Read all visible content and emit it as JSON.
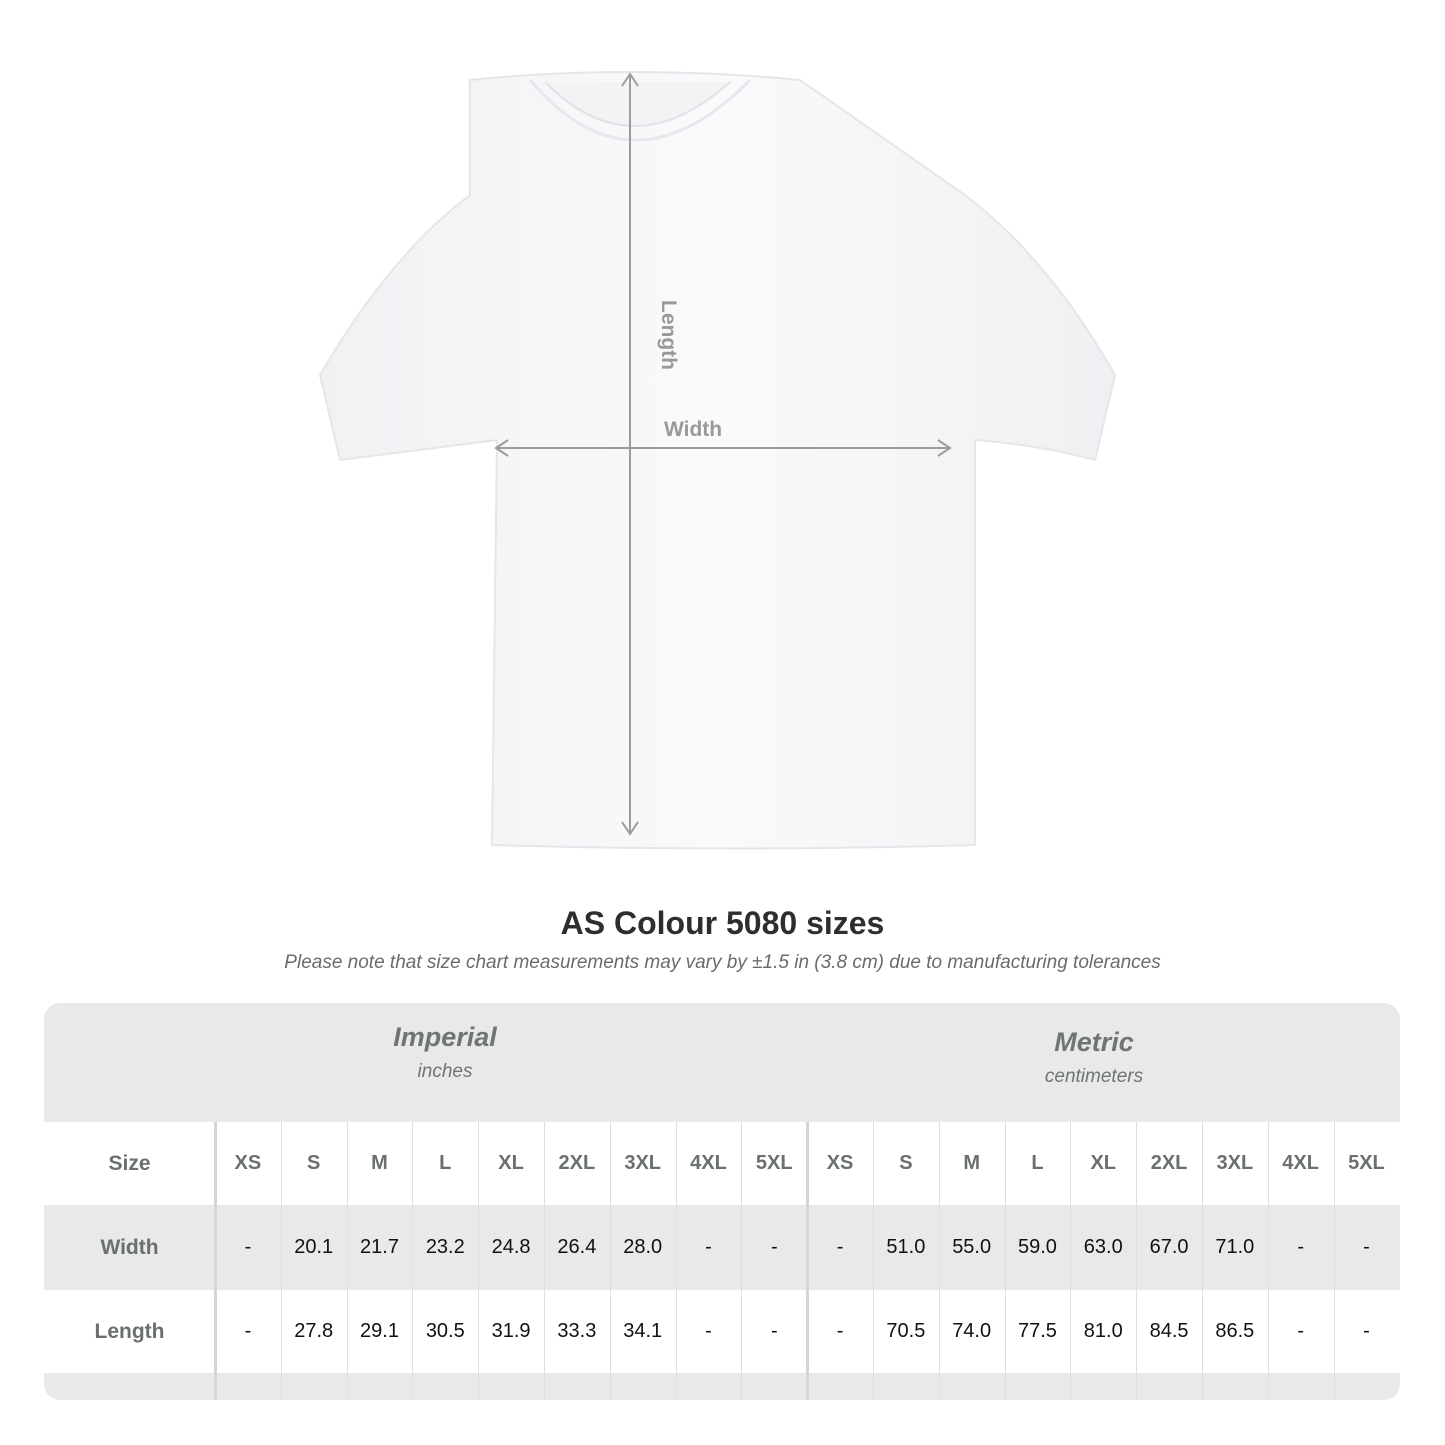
{
  "diagram": {
    "length_label": "Length",
    "width_label": "Width"
  },
  "title": "AS Colour 5080 sizes",
  "note": "Please note that size chart measurements may vary by ±1.5 in (3.8 cm) due to manufacturing tolerances",
  "imperial": {
    "name": "Imperial",
    "unit": "inches"
  },
  "metric": {
    "name": "Metric",
    "unit": "centimeters"
  },
  "rows": [
    {
      "label": "Size",
      "imperial": [
        "XS",
        "S",
        "M",
        "L",
        "XL",
        "2XL",
        "3XL",
        "4XL",
        "5XL"
      ],
      "metric": [
        "XS",
        "S",
        "M",
        "L",
        "XL",
        "2XL",
        "3XL",
        "4XL",
        "5XL"
      ]
    },
    {
      "label": "Width",
      "imperial": [
        "-",
        "20.1",
        "21.7",
        "23.2",
        "24.8",
        "26.4",
        "28.0",
        "-",
        "-"
      ],
      "metric": [
        "-",
        "51.0",
        "55.0",
        "59.0",
        "63.0",
        "67.0",
        "71.0",
        "-",
        "-"
      ]
    },
    {
      "label": "Length",
      "imperial": [
        "-",
        "27.8",
        "29.1",
        "30.5",
        "31.9",
        "33.3",
        "34.1",
        "-",
        "-"
      ],
      "metric": [
        "-",
        "70.5",
        "74.0",
        "77.5",
        "81.0",
        "84.5",
        "86.5",
        "-",
        "-"
      ]
    }
  ]
}
